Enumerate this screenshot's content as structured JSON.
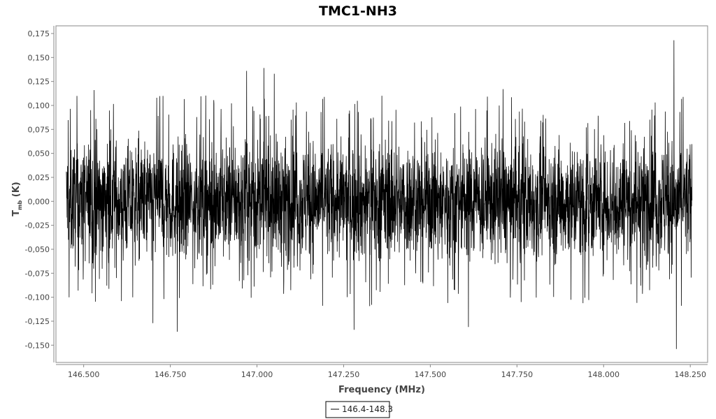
{
  "chart_data": {
    "type": "line",
    "title": "TMC1-NH3",
    "xlabel": "Frequency (MHz)",
    "ylabel_main": "T",
    "ylabel_sub": "mb",
    "ylabel_unit": " (K)",
    "xlim": [
      146.42,
      148.3
    ],
    "ylim": [
      -0.168,
      0.183
    ],
    "x_ticks": [
      146.5,
      146.75,
      147.0,
      147.25,
      147.5,
      147.75,
      148.0,
      148.25
    ],
    "x_tick_labels": [
      "146.500",
      "146.750",
      "147.000",
      "147.250",
      "147.500",
      "147.750",
      "148.000",
      "148.250"
    ],
    "y_ticks": [
      -0.15,
      -0.125,
      -0.1,
      -0.075,
      -0.05,
      -0.025,
      0.0,
      0.025,
      0.05,
      0.075,
      0.1,
      0.125,
      0.15,
      0.175
    ],
    "y_tick_labels": [
      "-0,150",
      "-0,125",
      "-0,100",
      "-0,075",
      "-0,050",
      "-0,025",
      "0,000",
      "0,025",
      "0,050",
      "0,075",
      "0,100",
      "0,125",
      "0,150",
      "0,175"
    ],
    "series": [
      {
        "name": "146.4-148.3",
        "color": "#000000",
        "x_range": [
          146.45,
          148.255
        ],
        "noise_envelope": [
          -0.085,
          0.085
        ],
        "baseline": 0.0,
        "spikes": [
          {
            "x": 148.203,
            "y": 0.168
          },
          {
            "x": 148.21,
            "y": -0.154
          },
          {
            "x": 147.02,
            "y": 0.139
          },
          {
            "x": 146.97,
            "y": 0.136
          },
          {
            "x": 147.05,
            "y": 0.133
          },
          {
            "x": 146.77,
            "y": -0.136
          },
          {
            "x": 147.28,
            "y": -0.134
          },
          {
            "x": 147.61,
            "y": -0.131
          },
          {
            "x": 146.7,
            "y": -0.127
          },
          {
            "x": 147.71,
            "y": 0.117
          },
          {
            "x": 146.53,
            "y": 0.116
          }
        ]
      }
    ],
    "grid": false,
    "legend_position": "bottom-center"
  }
}
